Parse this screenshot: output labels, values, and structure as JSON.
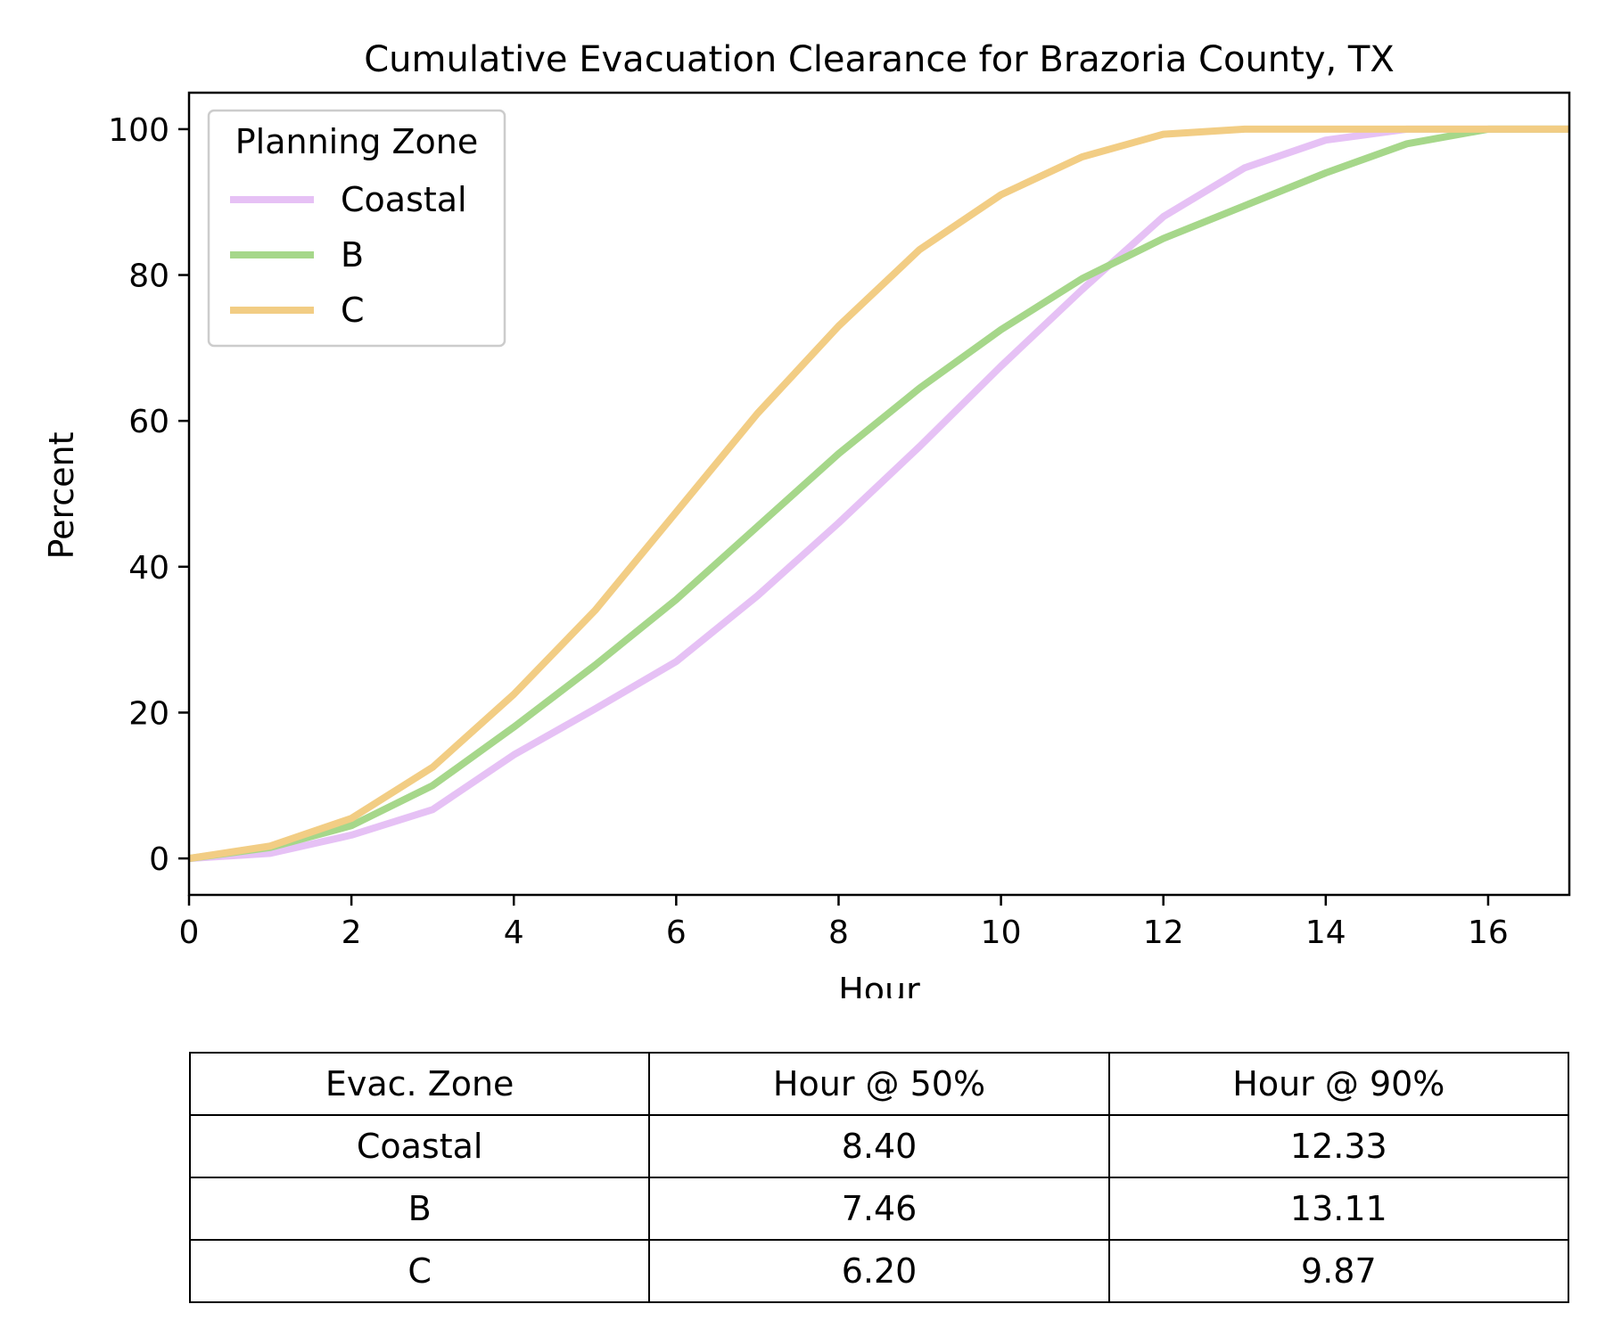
{
  "chart_data": {
    "type": "line",
    "title": "Cumulative Evacuation Clearance for Brazoria County, TX",
    "xlabel": "Hour",
    "ylabel": "Percent",
    "xlim": [
      0,
      17
    ],
    "ylim": [
      -5,
      105
    ],
    "xticks": [
      0,
      2,
      4,
      6,
      8,
      10,
      12,
      14,
      16
    ],
    "yticks": [
      0,
      20,
      40,
      60,
      80,
      100
    ],
    "legend": {
      "title": "Planning Zone",
      "placement": "upper-left"
    },
    "x": [
      0,
      1,
      2,
      3,
      4,
      5,
      6,
      7,
      8,
      9,
      10,
      11,
      12,
      13,
      14,
      15,
      16,
      17
    ],
    "series": [
      {
        "name": "Coastal",
        "color": "#e6c1f5",
        "values": [
          0,
          0.7,
          3.2,
          6.7,
          14.2,
          20.5,
          27,
          36,
          46,
          56.5,
          67.5,
          78,
          88,
          94.7,
          98.5,
          100,
          100,
          100
        ]
      },
      {
        "name": "B",
        "color": "#a6d78a",
        "values": [
          0,
          1.5,
          4.5,
          10,
          18,
          26.5,
          35.5,
          45.5,
          55.5,
          64.5,
          72.5,
          79.5,
          85,
          89.5,
          94,
          98,
          100,
          100
        ]
      },
      {
        "name": "C",
        "color": "#f2cd84",
        "values": [
          0,
          1.7,
          5.5,
          12.5,
          22.5,
          34,
          47.5,
          61,
          73,
          83.5,
          91,
          96.2,
          99.3,
          100,
          100,
          100,
          100,
          100
        ]
      }
    ]
  },
  "table": {
    "headers": [
      "Evac. Zone",
      "Hour @ 50%",
      "Hour @ 90%"
    ],
    "rows": [
      [
        "Coastal",
        "8.40",
        "12.33"
      ],
      [
        "B",
        "7.46",
        "13.11"
      ],
      [
        "C",
        "6.20",
        "9.87"
      ]
    ]
  }
}
